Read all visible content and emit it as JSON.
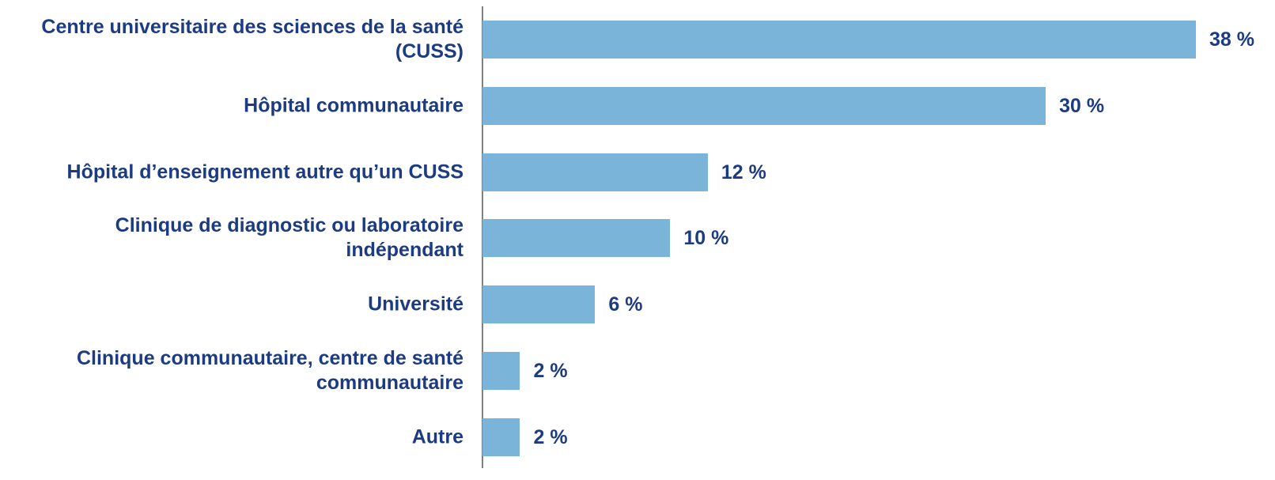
{
  "chart_data": {
    "type": "bar",
    "orientation": "horizontal",
    "categories": [
      "Centre universitaire des sciences de la santé (CUSS)",
      "Hôpital communautaire",
      "Hôpital d’enseignement autre qu’un CUSS",
      "Clinique de diagnostic ou laboratoire indépendant",
      "Université",
      "Clinique communautaire, centre de santé communautaire",
      "Autre"
    ],
    "values": [
      38,
      30,
      12,
      10,
      6,
      2,
      2
    ],
    "value_labels": [
      "38 %",
      "30 %",
      "12 %",
      "10 %",
      "6 %",
      "2 %",
      "2 %"
    ],
    "color": "#7ab5d9"
  }
}
